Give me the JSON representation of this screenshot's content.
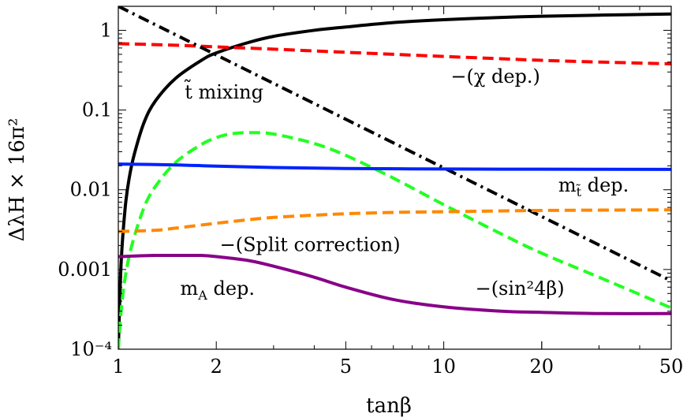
{
  "chart_data": {
    "type": "line",
    "xlabel": "tanβ",
    "ylabel": "ΔλH × 16π²",
    "x_scale": "log",
    "y_scale": "log",
    "xlim": [
      1,
      50
    ],
    "ylim": [
      0.0001,
      2
    ],
    "x_ticks": [
      {
        "value": 1,
        "label": "1"
      },
      {
        "value": 2,
        "label": "2"
      },
      {
        "value": 5,
        "label": "5"
      },
      {
        "value": 10,
        "label": "10"
      },
      {
        "value": 20,
        "label": "20"
      },
      {
        "value": 50,
        "label": "50"
      }
    ],
    "y_ticks": [
      {
        "value": 0.0001,
        "label": "10⁻⁴"
      },
      {
        "value": 0.001,
        "label": "0.001"
      },
      {
        "value": 0.01,
        "label": "0.01"
      },
      {
        "value": 0.1,
        "label": "0.1"
      },
      {
        "value": 1,
        "label": "1"
      }
    ],
    "series": [
      {
        "color": "#000000",
        "dash": "solid",
        "x": [
          1.0,
          1.02,
          1.05,
          1.08,
          1.12,
          1.2,
          1.3,
          1.5,
          1.8,
          2.0,
          2.5,
          3,
          4,
          5,
          7,
          10,
          15,
          20,
          30,
          50
        ],
        "y": [
          0.0001,
          0.0012,
          0.006,
          0.014,
          0.028,
          0.07,
          0.13,
          0.25,
          0.42,
          0.52,
          0.7,
          0.84,
          1.0,
          1.1,
          1.25,
          1.36,
          1.45,
          1.5,
          1.55,
          1.6
        ]
      },
      {
        "color": "#ff0000",
        "dash": "dashed",
        "x": [
          1,
          1.5,
          2,
          3,
          5,
          7,
          10,
          15,
          20,
          30,
          50
        ],
        "y": [
          0.68,
          0.65,
          0.62,
          0.58,
          0.53,
          0.5,
          0.47,
          0.44,
          0.42,
          0.4,
          0.38
        ]
      },
      {
        "color": "#000000",
        "dash": "dashdot",
        "x": [
          1,
          50
        ],
        "y": [
          2.0,
          0.00072
        ]
      },
      {
        "color": "#22ff22",
        "dash": "dashed",
        "x": [
          1.0,
          1.02,
          1.05,
          1.1,
          1.2,
          1.3,
          1.5,
          1.8,
          2.0,
          2.2,
          2.5,
          3,
          4,
          5,
          7,
          10,
          15,
          20,
          30,
          50
        ],
        "y": [
          0.0001,
          0.0003,
          0.0008,
          0.002,
          0.006,
          0.011,
          0.022,
          0.037,
          0.045,
          0.05,
          0.052,
          0.05,
          0.038,
          0.027,
          0.014,
          0.0065,
          0.0028,
          0.0016,
          0.0008,
          0.00033
        ]
      },
      {
        "color": "#0022ff",
        "dash": "solid",
        "x": [
          1,
          1.5,
          2,
          3,
          5,
          10,
          20,
          50
        ],
        "y": [
          0.021,
          0.0205,
          0.0198,
          0.019,
          0.0185,
          0.0182,
          0.0181,
          0.018
        ]
      },
      {
        "color": "#ff8800",
        "dash": "dashed",
        "x": [
          1,
          1.3,
          1.5,
          2,
          2.5,
          3,
          4,
          5,
          7,
          10,
          20,
          50
        ],
        "y": [
          0.003,
          0.0031,
          0.0033,
          0.0038,
          0.0042,
          0.0045,
          0.0048,
          0.005,
          0.0052,
          0.0053,
          0.0055,
          0.0056
        ]
      },
      {
        "color": "#880088",
        "dash": "solid",
        "x": [
          1,
          1.3,
          1.6,
          1.8,
          2.0,
          2.5,
          3,
          4,
          5,
          7,
          10,
          15,
          20,
          30,
          50
        ],
        "y": [
          0.00145,
          0.0015,
          0.0015,
          0.0015,
          0.00145,
          0.0013,
          0.0011,
          0.0008,
          0.0006,
          0.00042,
          0.00034,
          0.0003,
          0.00029,
          0.00028,
          0.00028
        ]
      }
    ],
    "annotations": [
      {
        "text": "t̃ mixing",
        "x": 1.6,
        "y": 0.14
      },
      {
        "text": "−(χ dep.)",
        "x": 10.5,
        "y": 0.22
      },
      {
        "text": "m",
        "x": 22.5,
        "y": 0.0095,
        "sub": "t̃",
        "rest": " dep."
      },
      {
        "text": "−(Split correction)",
        "x": 2.05,
        "y": 0.0017
      },
      {
        "text": "−(sin²4β)",
        "x": 12.5,
        "y": 0.00048
      },
      {
        "text": "m",
        "x": 1.55,
        "y": 0.00048,
        "sub": "A",
        "rest": " dep."
      }
    ]
  }
}
